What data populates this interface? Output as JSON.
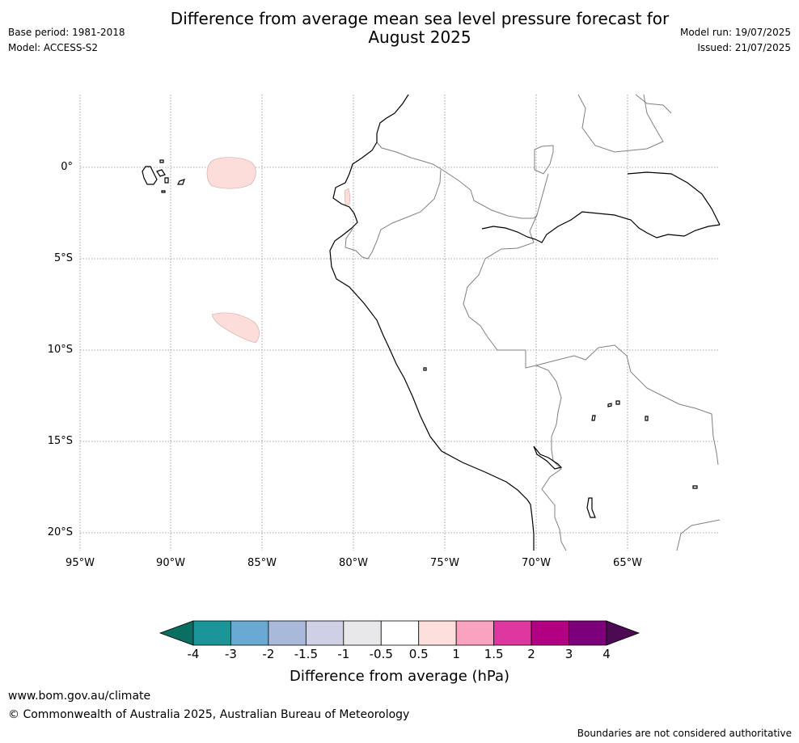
{
  "header": {
    "title_line1": "Difference from average mean sea level pressure forecast for",
    "title_line2": "August 2025",
    "base_period": "Base period: 1981-2018",
    "model": "Model: ACCESS-S2",
    "model_run": "Model run: 19/07/2025",
    "issued": "Issued: 21/07/2025"
  },
  "map": {
    "lat_ticks": [
      "0°",
      "5°S",
      "10°S",
      "15°S",
      "20°S"
    ],
    "lon_ticks": [
      "95°W",
      "90°W",
      "85°W",
      "80°W",
      "75°W",
      "70°W",
      "65°W"
    ],
    "anomaly_fill": "#fdddda",
    "coast_color": "#000000",
    "border_color": "#808080"
  },
  "colorbar": {
    "title": "Difference from average (hPa)",
    "tick_labels": [
      "-4",
      "-3",
      "-2",
      "-1.5",
      "-1",
      "-0.5",
      "0.5",
      "1",
      "1.5",
      "2",
      "3",
      "4"
    ],
    "under_color": "#0b6e63",
    "over_color": "#4b0a52",
    "colors": [
      "#1b949a",
      "#6aaad2",
      "#a8b9da",
      "#cfd0e6",
      "#e8e8ea",
      "#ffffff",
      "#fde0de",
      "#f9a3c0",
      "#df37a0",
      "#b30082",
      "#7c0079"
    ]
  },
  "footer": {
    "website": "www.bom.gov.au/climate",
    "copyright": "© Commonwealth of Australia 2025, Australian Bureau of Meteorology",
    "disclaimer": "Boundaries are not considered authoritative"
  }
}
